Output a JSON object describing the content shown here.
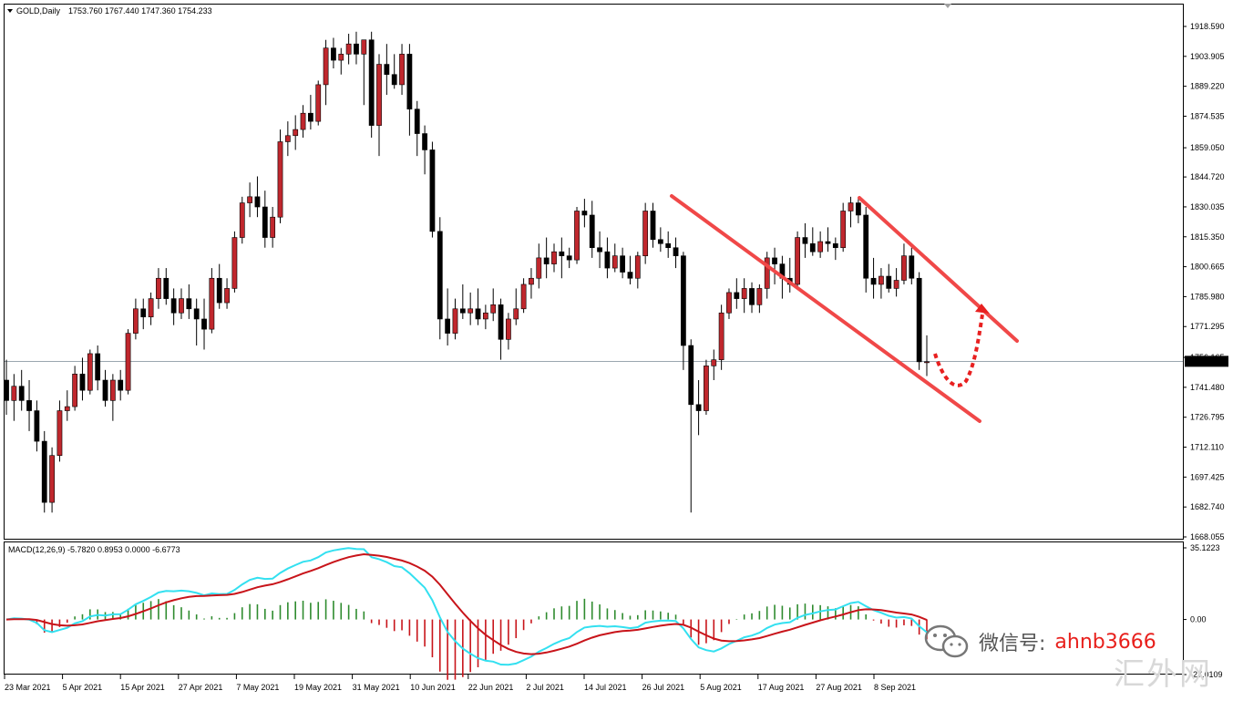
{
  "header": {
    "symbol": "GOLD,Daily",
    "ohlc": "1753.760 1767.440 1747.360 1754.233"
  },
  "price_axis": {
    "labels": [
      "1918.590",
      "1903.905",
      "1889.220",
      "1874.535",
      "1859.050",
      "1844.720",
      "1830.035",
      "1815.350",
      "1800.665",
      "1785.980",
      "1771.295",
      "1756.165",
      "1741.480",
      "1726.795",
      "1712.110",
      "1697.425",
      "1682.740",
      "1668.055"
    ],
    "current_price_label": "1754.233"
  },
  "macd_panel": {
    "title": "MACD(12,26,9) -5.7820 0.8953 0.0000 -6.6773",
    "axis_labels": [
      "35.1223",
      "0.00",
      "-27.0109"
    ]
  },
  "x_axis": {
    "labels": [
      "23 Mar 2021",
      "5 Apr 2021",
      "15 Apr 2021",
      "27 Apr 2021",
      "7 May 2021",
      "19 May 2021",
      "31 May 2021",
      "10 Jun 2021",
      "22 Jun 2021",
      "2 Jul 2021",
      "14 Jul 2021",
      "26 Jul 2021",
      "5 Aug 2021",
      "17 Aug 2021",
      "27 Aug 2021",
      "8 Sep 2021"
    ]
  },
  "watermark": {
    "wechat_label": "微信号:",
    "wechat_id": "ahnb3666",
    "site": "汇外网"
  },
  "colors": {
    "bull": "#c0272d",
    "bear": "#000000",
    "channel": "#f04848",
    "macd_line": "#33e0f0",
    "signal_line": "#c8141a",
    "hist_pos": "#2e8b2e",
    "hist_neg": "#c8141a"
  },
  "chart_data": {
    "type": "candlestick",
    "title": "GOLD,Daily",
    "candles": [
      {
        "o": 1745,
        "h": 1755,
        "l": 1728,
        "c": 1735
      },
      {
        "o": 1735,
        "h": 1748,
        "l": 1725,
        "c": 1742
      },
      {
        "o": 1742,
        "h": 1750,
        "l": 1730,
        "c": 1735
      },
      {
        "o": 1735,
        "h": 1745,
        "l": 1720,
        "c": 1730
      },
      {
        "o": 1730,
        "h": 1735,
        "l": 1710,
        "c": 1715
      },
      {
        "o": 1715,
        "h": 1720,
        "l": 1680,
        "c": 1685
      },
      {
        "o": 1685,
        "h": 1712,
        "l": 1680,
        "c": 1708
      },
      {
        "o": 1708,
        "h": 1735,
        "l": 1705,
        "c": 1730
      },
      {
        "o": 1730,
        "h": 1740,
        "l": 1725,
        "c": 1732
      },
      {
        "o": 1732,
        "h": 1752,
        "l": 1730,
        "c": 1748
      },
      {
        "o": 1748,
        "h": 1756,
        "l": 1735,
        "c": 1740
      },
      {
        "o": 1740,
        "h": 1760,
        "l": 1738,
        "c": 1758
      },
      {
        "o": 1758,
        "h": 1762,
        "l": 1740,
        "c": 1745
      },
      {
        "o": 1745,
        "h": 1750,
        "l": 1732,
        "c": 1735
      },
      {
        "o": 1735,
        "h": 1748,
        "l": 1725,
        "c": 1745
      },
      {
        "o": 1745,
        "h": 1750,
        "l": 1735,
        "c": 1740
      },
      {
        "o": 1740,
        "h": 1770,
        "l": 1738,
        "c": 1768
      },
      {
        "o": 1768,
        "h": 1785,
        "l": 1765,
        "c": 1780
      },
      {
        "o": 1780,
        "h": 1785,
        "l": 1770,
        "c": 1776
      },
      {
        "o": 1776,
        "h": 1788,
        "l": 1772,
        "c": 1785
      },
      {
        "o": 1785,
        "h": 1800,
        "l": 1780,
        "c": 1795
      },
      {
        "o": 1795,
        "h": 1800,
        "l": 1782,
        "c": 1785
      },
      {
        "o": 1785,
        "h": 1790,
        "l": 1772,
        "c": 1778
      },
      {
        "o": 1778,
        "h": 1790,
        "l": 1775,
        "c": 1785
      },
      {
        "o": 1785,
        "h": 1792,
        "l": 1775,
        "c": 1780
      },
      {
        "o": 1780,
        "h": 1785,
        "l": 1762,
        "c": 1775
      },
      {
        "o": 1775,
        "h": 1785,
        "l": 1760,
        "c": 1770
      },
      {
        "o": 1770,
        "h": 1800,
        "l": 1768,
        "c": 1795
      },
      {
        "o": 1795,
        "h": 1802,
        "l": 1780,
        "c": 1783
      },
      {
        "o": 1783,
        "h": 1795,
        "l": 1780,
        "c": 1790
      },
      {
        "o": 1790,
        "h": 1818,
        "l": 1788,
        "c": 1815
      },
      {
        "o": 1815,
        "h": 1835,
        "l": 1812,
        "c": 1832
      },
      {
        "o": 1832,
        "h": 1842,
        "l": 1825,
        "c": 1835
      },
      {
        "o": 1835,
        "h": 1845,
        "l": 1825,
        "c": 1830
      },
      {
        "o": 1830,
        "h": 1838,
        "l": 1810,
        "c": 1815
      },
      {
        "o": 1815,
        "h": 1830,
        "l": 1810,
        "c": 1825
      },
      {
        "o": 1825,
        "h": 1868,
        "l": 1822,
        "c": 1862
      },
      {
        "o": 1862,
        "h": 1872,
        "l": 1855,
        "c": 1865
      },
      {
        "o": 1865,
        "h": 1875,
        "l": 1858,
        "c": 1868
      },
      {
        "o": 1868,
        "h": 1880,
        "l": 1864,
        "c": 1876
      },
      {
        "o": 1876,
        "h": 1885,
        "l": 1868,
        "c": 1872
      },
      {
        "o": 1872,
        "h": 1892,
        "l": 1870,
        "c": 1890
      },
      {
        "o": 1890,
        "h": 1912,
        "l": 1880,
        "c": 1908
      },
      {
        "o": 1908,
        "h": 1913,
        "l": 1898,
        "c": 1902
      },
      {
        "o": 1902,
        "h": 1908,
        "l": 1895,
        "c": 1905
      },
      {
        "o": 1905,
        "h": 1915,
        "l": 1900,
        "c": 1910
      },
      {
        "o": 1910,
        "h": 1916,
        "l": 1900,
        "c": 1905
      },
      {
        "o": 1905,
        "h": 1912,
        "l": 1880,
        "c": 1912
      },
      {
        "o": 1912,
        "h": 1916,
        "l": 1864,
        "c": 1870
      },
      {
        "o": 1870,
        "h": 1905,
        "l": 1855,
        "c": 1900
      },
      {
        "o": 1900,
        "h": 1910,
        "l": 1885,
        "c": 1895
      },
      {
        "o": 1895,
        "h": 1905,
        "l": 1888,
        "c": 1890
      },
      {
        "o": 1890,
        "h": 1910,
        "l": 1885,
        "c": 1905
      },
      {
        "o": 1905,
        "h": 1910,
        "l": 1865,
        "c": 1878
      },
      {
        "o": 1878,
        "h": 1882,
        "l": 1855,
        "c": 1866
      },
      {
        "o": 1866,
        "h": 1870,
        "l": 1846,
        "c": 1858
      },
      {
        "o": 1858,
        "h": 1862,
        "l": 1815,
        "c": 1818
      },
      {
        "o": 1818,
        "h": 1825,
        "l": 1765,
        "c": 1775
      },
      {
        "o": 1775,
        "h": 1790,
        "l": 1762,
        "c": 1768
      },
      {
        "o": 1768,
        "h": 1785,
        "l": 1765,
        "c": 1780
      },
      {
        "o": 1780,
        "h": 1792,
        "l": 1775,
        "c": 1778
      },
      {
        "o": 1778,
        "h": 1788,
        "l": 1772,
        "c": 1780
      },
      {
        "o": 1780,
        "h": 1790,
        "l": 1772,
        "c": 1775
      },
      {
        "o": 1775,
        "h": 1782,
        "l": 1770,
        "c": 1778
      },
      {
        "o": 1778,
        "h": 1790,
        "l": 1774,
        "c": 1782
      },
      {
        "o": 1782,
        "h": 1785,
        "l": 1755,
        "c": 1765
      },
      {
        "o": 1765,
        "h": 1778,
        "l": 1760,
        "c": 1775
      },
      {
        "o": 1775,
        "h": 1790,
        "l": 1772,
        "c": 1780
      },
      {
        "o": 1780,
        "h": 1795,
        "l": 1778,
        "c": 1792
      },
      {
        "o": 1792,
        "h": 1800,
        "l": 1785,
        "c": 1795
      },
      {
        "o": 1795,
        "h": 1812,
        "l": 1790,
        "c": 1805
      },
      {
        "o": 1805,
        "h": 1815,
        "l": 1795,
        "c": 1802
      },
      {
        "o": 1802,
        "h": 1812,
        "l": 1798,
        "c": 1808
      },
      {
        "o": 1808,
        "h": 1815,
        "l": 1795,
        "c": 1806
      },
      {
        "o": 1806,
        "h": 1810,
        "l": 1800,
        "c": 1804
      },
      {
        "o": 1804,
        "h": 1830,
        "l": 1802,
        "c": 1828
      },
      {
        "o": 1828,
        "h": 1834,
        "l": 1820,
        "c": 1826
      },
      {
        "o": 1826,
        "h": 1833,
        "l": 1805,
        "c": 1810
      },
      {
        "o": 1810,
        "h": 1818,
        "l": 1800,
        "c": 1808
      },
      {
        "o": 1808,
        "h": 1815,
        "l": 1795,
        "c": 1800
      },
      {
        "o": 1800,
        "h": 1812,
        "l": 1798,
        "c": 1806
      },
      {
        "o": 1806,
        "h": 1810,
        "l": 1795,
        "c": 1798
      },
      {
        "o": 1798,
        "h": 1806,
        "l": 1792,
        "c": 1795
      },
      {
        "o": 1795,
        "h": 1808,
        "l": 1790,
        "c": 1806
      },
      {
        "o": 1806,
        "h": 1832,
        "l": 1802,
        "c": 1828
      },
      {
        "o": 1828,
        "h": 1832,
        "l": 1810,
        "c": 1814
      },
      {
        "o": 1814,
        "h": 1820,
        "l": 1808,
        "c": 1812
      },
      {
        "o": 1812,
        "h": 1818,
        "l": 1805,
        "c": 1810
      },
      {
        "o": 1810,
        "h": 1815,
        "l": 1800,
        "c": 1806
      },
      {
        "o": 1806,
        "h": 1808,
        "l": 1750,
        "c": 1762
      },
      {
        "o": 1762,
        "h": 1765,
        "l": 1680,
        "c": 1733
      },
      {
        "o": 1733,
        "h": 1745,
        "l": 1718,
        "c": 1730
      },
      {
        "o": 1730,
        "h": 1755,
        "l": 1728,
        "c": 1752
      },
      {
        "o": 1752,
        "h": 1760,
        "l": 1745,
        "c": 1755
      },
      {
        "o": 1755,
        "h": 1782,
        "l": 1750,
        "c": 1778
      },
      {
        "o": 1778,
        "h": 1790,
        "l": 1775,
        "c": 1788
      },
      {
        "o": 1788,
        "h": 1795,
        "l": 1780,
        "c": 1785
      },
      {
        "o": 1785,
        "h": 1795,
        "l": 1778,
        "c": 1790
      },
      {
        "o": 1790,
        "h": 1793,
        "l": 1778,
        "c": 1782
      },
      {
        "o": 1782,
        "h": 1792,
        "l": 1778,
        "c": 1790
      },
      {
        "o": 1790,
        "h": 1808,
        "l": 1785,
        "c": 1805
      },
      {
        "o": 1805,
        "h": 1810,
        "l": 1792,
        "c": 1802
      },
      {
        "o": 1802,
        "h": 1806,
        "l": 1785,
        "c": 1795
      },
      {
        "o": 1795,
        "h": 1805,
        "l": 1788,
        "c": 1792
      },
      {
        "o": 1792,
        "h": 1818,
        "l": 1790,
        "c": 1815
      },
      {
        "o": 1815,
        "h": 1822,
        "l": 1805,
        "c": 1812
      },
      {
        "o": 1812,
        "h": 1820,
        "l": 1806,
        "c": 1808
      },
      {
        "o": 1808,
        "h": 1818,
        "l": 1805,
        "c": 1813
      },
      {
        "o": 1813,
        "h": 1820,
        "l": 1808,
        "c": 1812
      },
      {
        "o": 1812,
        "h": 1815,
        "l": 1804,
        "c": 1810
      },
      {
        "o": 1810,
        "h": 1832,
        "l": 1808,
        "c": 1828
      },
      {
        "o": 1828,
        "h": 1835,
        "l": 1820,
        "c": 1832
      },
      {
        "o": 1832,
        "h": 1834,
        "l": 1822,
        "c": 1826
      },
      {
        "o": 1826,
        "h": 1830,
        "l": 1788,
        "c": 1795
      },
      {
        "o": 1795,
        "h": 1805,
        "l": 1785,
        "c": 1792
      },
      {
        "o": 1792,
        "h": 1800,
        "l": 1785,
        "c": 1796
      },
      {
        "o": 1796,
        "h": 1802,
        "l": 1788,
        "c": 1790
      },
      {
        "o": 1790,
        "h": 1800,
        "l": 1786,
        "c": 1794
      },
      {
        "o": 1794,
        "h": 1812,
        "l": 1792,
        "c": 1806
      },
      {
        "o": 1806,
        "h": 1810,
        "l": 1792,
        "c": 1795
      },
      {
        "o": 1795,
        "h": 1798,
        "l": 1750,
        "c": 1754
      },
      {
        "o": 1754,
        "h": 1767,
        "l": 1747,
        "c": 1754
      }
    ],
    "current_price": 1754.233,
    "ylim": [
      1668.055,
      1927
    ],
    "macd": {
      "params": "12,26,9",
      "value": -5.782,
      "signal": 0.8953,
      "hist": -6.6773,
      "ylim": [
        -27.0109,
        35.1223
      ]
    }
  }
}
